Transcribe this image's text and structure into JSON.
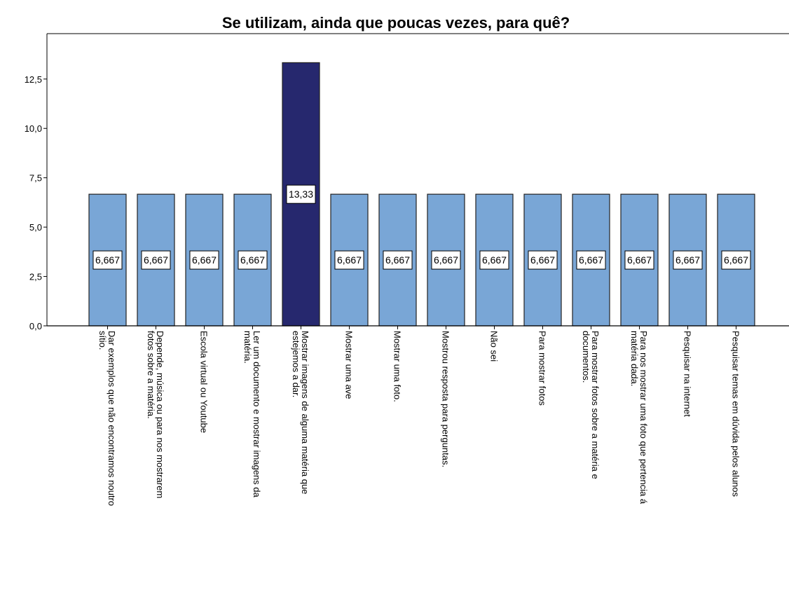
{
  "chart_data": {
    "type": "bar",
    "title": "Se utilizam, ainda que poucas vezes, para quê?",
    "categories": [
      [
        "Dar exemplos que não encontramos noutro",
        "sítio."
      ],
      [
        "Depende, música ou para nos mostrarem",
        "fotos sobre a matéria."
      ],
      [
        "Escola virtual ou Youtube"
      ],
      [
        "Ler um documento e mostrar imagens da",
        "matéria."
      ],
      [
        "Mostrar imagens de alguma matéria que",
        "estejemos a dar."
      ],
      [
        "Mostrar uma ave"
      ],
      [
        "Mostrar uma foto."
      ],
      [
        "Mostrou resposta para perguntas."
      ],
      [
        "Não sei"
      ],
      [
        "Para mostrar fotos"
      ],
      [
        "Para mostrar fotos sobre a matéria e",
        "documentos."
      ],
      [
        "Para nos mostrar uma foto que pertencia á",
        "matéria dada."
      ],
      [
        "Pesquisar na internet"
      ],
      [
        "Pesquisar temas em dúvida pelos alunos"
      ]
    ],
    "values": [
      6.667,
      6.667,
      6.667,
      6.667,
      13.33,
      6.667,
      6.667,
      6.667,
      6.667,
      6.667,
      6.667,
      6.667,
      6.667,
      6.667
    ],
    "value_labels": [
      "6,667",
      "6,667",
      "6,667",
      "6,667",
      "13,33",
      "6,667",
      "6,667",
      "6,667",
      "6,667",
      "6,667",
      "6,667",
      "6,667",
      "6,667",
      "6,667"
    ],
    "colors": [
      "#79a6d6",
      "#79a6d6",
      "#79a6d6",
      "#79a6d6",
      "#26286e",
      "#79a6d6",
      "#79a6d6",
      "#79a6d6",
      "#79a6d6",
      "#79a6d6",
      "#79a6d6",
      "#79a6d6",
      "#79a6d6",
      "#79a6d6"
    ],
    "ylim": [
      0,
      14.8
    ],
    "yticks": [
      {
        "value": 0,
        "label": "0,0"
      },
      {
        "value": 2.5,
        "label": "2,5"
      },
      {
        "value": 5,
        "label": "5,0"
      },
      {
        "value": 7.5,
        "label": "7,5"
      },
      {
        "value": 10,
        "label": "10,0"
      },
      {
        "value": 12.5,
        "label": "12,5"
      }
    ]
  }
}
